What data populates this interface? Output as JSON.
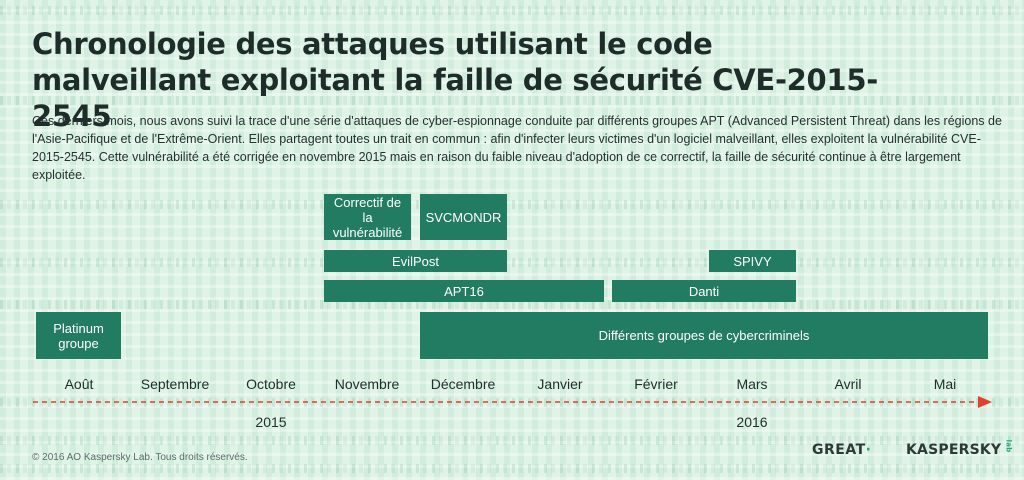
{
  "title": "Chronologie des attaques utilisant le code malveillant exploitant la faille de sécurité CVE-2015-2545",
  "intro": "Ces derniers mois, nous avons suivi la trace d'une série d'attaques de cyber-espionnage conduite par différents groupes APT (Advanced Persistent Threat) dans les régions de l'Asie-Pacifique et de l'Extrême-Orient. Elles partagent toutes un trait en commun : afin d'infecter leurs victimes d'un logiciel malveillant, elles exploitent la vulnérabilité CVE-2015-2545. Cette vulnérabilité a été corrigée en novembre 2015 mais en raison du faible niveau d'adoption de ce correctif, la faille de sécurité continue à être largement exploitée.",
  "events": {
    "correctif": "Correctif de la vulnérabilité",
    "svcmondr": "SVCMONDR",
    "evilpost": "EvilPost",
    "spivy": "SPIVY",
    "apt16": "APT16",
    "danti": "Danti",
    "platinum": "Platinum groupe",
    "cybercrime": "Différents groupes de cybercriminels"
  },
  "months": [
    "Août",
    "Septembre",
    "Octobre",
    "Novembre",
    "Décembre",
    "Janvier",
    "Février",
    "Mars",
    "Avril",
    "Mai"
  ],
  "years": {
    "y2015": "2015",
    "y2016": "2016"
  },
  "footer": {
    "copyright": "© 2016 AO Kaspersky Lab. Tous droits réservés.",
    "great": "GREAT",
    "kaspersky": "KASPERSKY",
    "lab": "lab"
  },
  "colors": {
    "bar": "#227c62",
    "axis": "#e0412b",
    "background": "#dff3e7"
  }
}
